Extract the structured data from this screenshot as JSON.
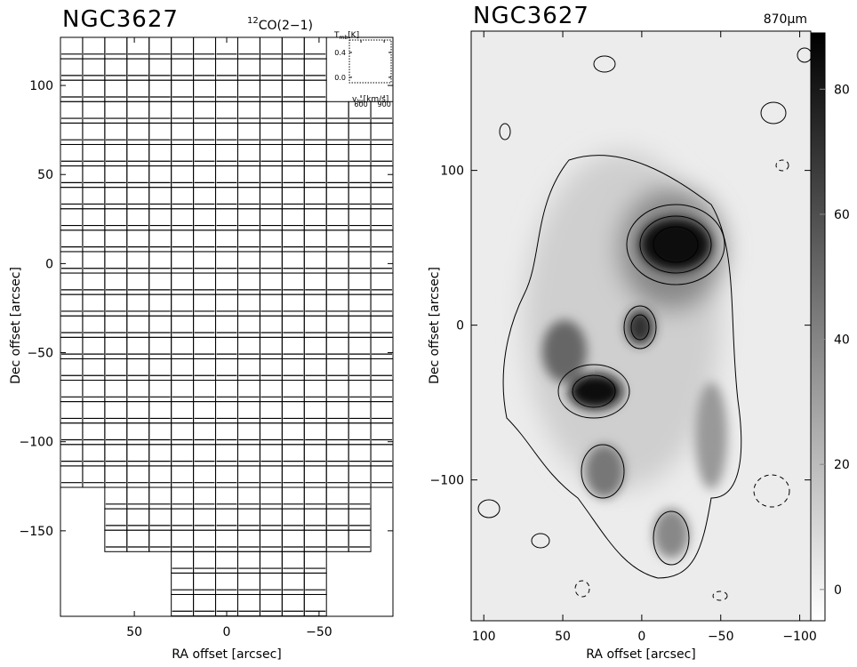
{
  "chart_data": [
    {
      "type": "spectra-grid",
      "title": "NGC3627",
      "line_label": {
        "isotope": "12",
        "species": "CO(2−1)"
      },
      "xlabel": "RA offset [arcsec]",
      "ylabel": "Dec offset [arcsec]",
      "xlim": [
        90,
        -90
      ],
      "ylim": [
        -198,
        127
      ],
      "xticks": [
        50,
        0,
        {
          "value": -50,
          "label": "−50"
        }
      ],
      "yticks": [
        100,
        50,
        0,
        {
          "value": -50,
          "label": "−50"
        },
        {
          "value": -100,
          "label": "−100"
        },
        {
          "value": -150,
          "label": "−150"
        }
      ],
      "inset": {
        "ylabel": {
          "symbol": "T",
          "sub": "mb",
          "unit": "[K]"
        },
        "xlabel": {
          "symbol": "v",
          "sub": "lsr",
          "unit": "[km/s]"
        },
        "xlim": [
          450,
          990
        ],
        "ylim": [
          -0.33,
          0.6
        ],
        "xticks": [
          600,
          900
        ],
        "yticks": [
          0.4,
          {
            "value": 0,
            "label": "0.0"
          }
        ]
      }
    },
    {
      "type": "image-contour",
      "title": "NGC3627",
      "band": "870μm",
      "xlabel": "RA offset [arcsec]",
      "ylabel": "Dec offset [arcsec]",
      "xlim": [
        108,
        -107
      ],
      "ylim": [
        -191,
        190
      ],
      "xticks": [
        100,
        50,
        0,
        {
          "value": -50,
          "label": "−50"
        },
        {
          "value": -100,
          "label": "−100"
        }
      ],
      "yticks": [
        {
          "value": -100,
          "label": "−100"
        },
        0,
        100
      ],
      "colorbar": {
        "lim": [
          -5,
          89
        ],
        "ticks": [
          0,
          20,
          40,
          60,
          80
        ]
      }
    }
  ]
}
